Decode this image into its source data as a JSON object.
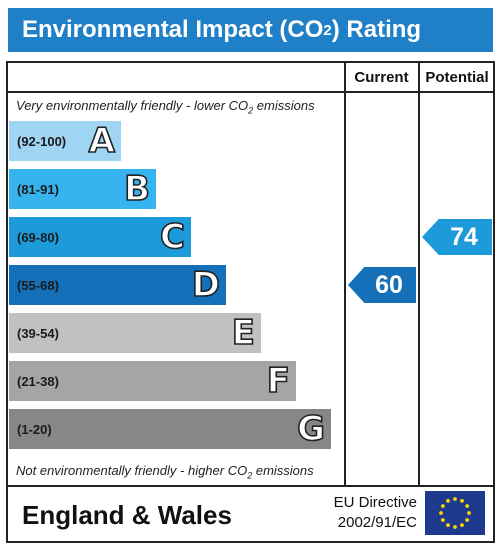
{
  "header": {
    "title_pre": "Environmental Impact (CO",
    "title_sub": "2",
    "title_post": ") Rating"
  },
  "columns": {
    "current": "Current",
    "potential": "Potential"
  },
  "notes": {
    "top_pre": "Very environmentally friendly - lower CO",
    "top_sub": "2",
    "top_post": " emissions",
    "bottom_pre": "Not environmentally friendly - higher CO",
    "bottom_sub": "2",
    "bottom_post": " emissions"
  },
  "chart_data": {
    "type": "bar",
    "bands": [
      {
        "range": "(92-100)",
        "letter": "A",
        "color": "#9fd5f3"
      },
      {
        "range": "(81-91)",
        "letter": "B",
        "color": "#36b4ef"
      },
      {
        "range": "(69-80)",
        "letter": "C",
        "color": "#1d9ad9"
      },
      {
        "range": "(55-68)",
        "letter": "D",
        "color": "#1470b8"
      },
      {
        "range": "(39-54)",
        "letter": "E",
        "color": "#c0c1c3"
      },
      {
        "range": "(21-38)",
        "letter": "F",
        "color": "#a3a5a7"
      },
      {
        "range": "(1-20)",
        "letter": "G",
        "color": "#858789"
      }
    ],
    "current": {
      "value": 60,
      "band": "D",
      "color": "#1470b8"
    },
    "potential": {
      "value": 74,
      "band": "C",
      "color": "#1d9ad9"
    }
  },
  "footer": {
    "region": "England & Wales",
    "directive_line1": "EU Directive",
    "directive_line2": "2002/91/EC"
  }
}
